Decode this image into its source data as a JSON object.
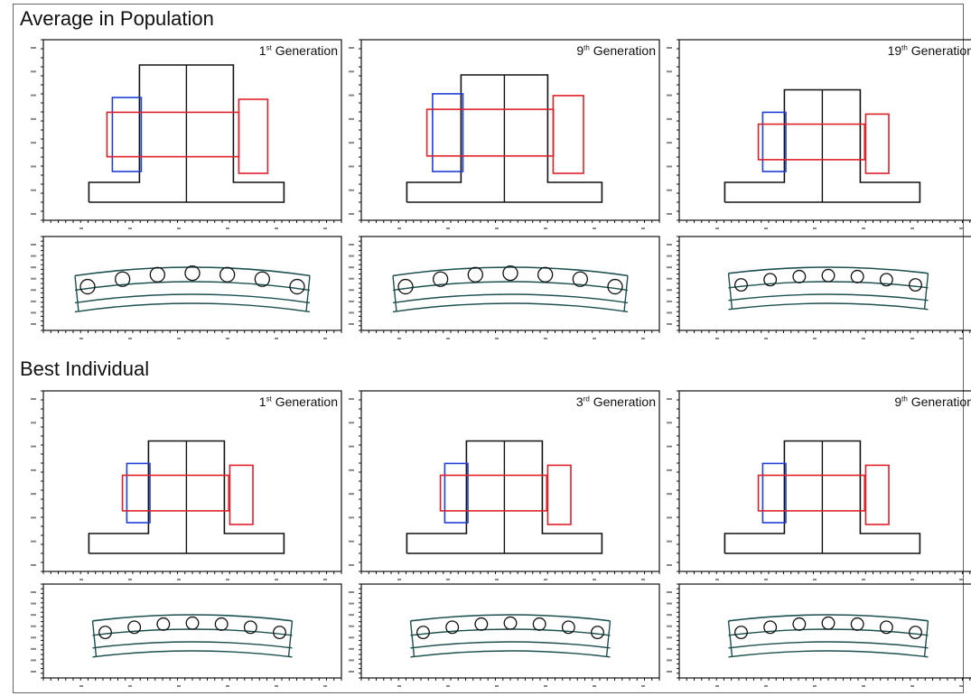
{
  "sections": [
    {
      "title": "Average in Population",
      "panels": [
        {
          "gen_number": "1",
          "gen_suffix": "st",
          "gen_word": "Generation",
          "stem_scale": 1.0,
          "magnet_scale": 1.0,
          "arc_scale": 1.0
        },
        {
          "gen_number": "9",
          "gen_suffix": "th",
          "gen_word": "Generation",
          "stem_scale": 0.9,
          "magnet_scale": 1.05,
          "arc_scale": 1.0
        },
        {
          "gen_number": "19",
          "gen_suffix": "th",
          "gen_word": "Generation",
          "stem_scale": 0.75,
          "magnet_scale": 0.8,
          "arc_scale": 0.85
        }
      ]
    },
    {
      "title": "Best Individual",
      "panels": [
        {
          "gen_number": "1",
          "gen_suffix": "st",
          "gen_word": "Generation",
          "stem_scale": 0.75,
          "magnet_scale": 0.8,
          "arc_scale": 0.85
        },
        {
          "gen_number": "3",
          "gen_suffix": "rd",
          "gen_word": "Generation",
          "stem_scale": 0.75,
          "magnet_scale": 0.8,
          "arc_scale": 0.85
        },
        {
          "gen_number": "9",
          "gen_suffix": "th",
          "gen_word": "Generation",
          "stem_scale": 0.75,
          "magnet_scale": 0.8,
          "arc_scale": 0.85
        }
      ]
    }
  ],
  "colors": {
    "structure": "#111111",
    "magnet_left": "#1f3fd6",
    "magnet_center": "#e0202a",
    "magnet_right": "#e0202a",
    "arc": "#1c4f4f",
    "axis": "#111111"
  },
  "icons": [
    "section-cross-figure",
    "arc-assembly-figure"
  ]
}
